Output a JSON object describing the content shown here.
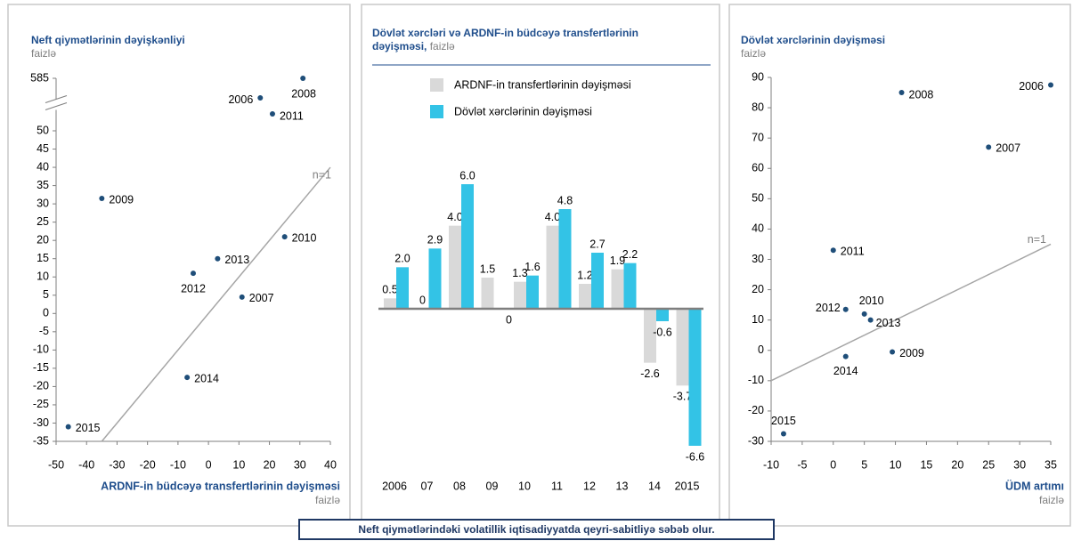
{
  "chart_data": [
    {
      "type": "scatter",
      "title": "Neft qiymətlərinin dəyişkənliyi",
      "subtitle": "faizlə",
      "xlabel": "ARDNF-in büdcəyə transfertlərinin dəyişməsi",
      "xunit": "faizlə",
      "labels": [
        "2006",
        "2007",
        "2008",
        "2009",
        "2010",
        "2011",
        "2012",
        "2013",
        "2014",
        "2015"
      ],
      "x": [
        17,
        11,
        31,
        -35,
        25,
        21,
        -5,
        3,
        -7,
        -46
      ],
      "values": [
        386,
        4.5,
        585,
        31.5,
        21,
        222,
        11,
        15,
        -17.5,
        -31
      ],
      "color": "#1f4e79",
      "xlim": [
        -50,
        40
      ],
      "xticks": [
        -50,
        -40,
        -30,
        -20,
        -10,
        0,
        10,
        20,
        30,
        40
      ],
      "ylim": [
        -35,
        585
      ],
      "yticks": [
        -35,
        -30,
        -25,
        -20,
        -15,
        -10,
        -5,
        0,
        5,
        10,
        15,
        20,
        25,
        30,
        35,
        40,
        45,
        50,
        585
      ],
      "axis_break": true,
      "grid": false,
      "line": {
        "label": "n=1",
        "x": [
          -35,
          40
        ],
        "y": [
          -35,
          40
        ],
        "color": "#a6a6a6"
      }
    },
    {
      "type": "bar",
      "title": "Dövlət xərcləri və ARDNF-in  büdcəyə transfertlərinin dəyişməsi,",
      "subtitle": "faizlə",
      "categories": [
        "2006",
        "07",
        "08",
        "09",
        "10",
        "11",
        "12",
        "13",
        "14",
        "2015"
      ],
      "series": [
        {
          "name": "ARDNF-in transfertlərinin dəyişməsi",
          "color": "#d9d9d9",
          "values": [
            0.5,
            0,
            4.0,
            1.5,
            1.3,
            4.0,
            1.2,
            1.9,
            -2.6,
            -3.7
          ],
          "value_labels": [
            "0.5",
            "0",
            "4.0",
            "1.5",
            "1.3",
            "4.0",
            "1.2",
            "1.9",
            "-2.6",
            "-3.7"
          ]
        },
        {
          "name": "Dövlət xərclərinin dəyişməsi",
          "color": "#33c3e6",
          "values": [
            2.0,
            2.9,
            6.0,
            0,
            1.6,
            4.8,
            2.7,
            2.2,
            -0.6,
            -6.6
          ],
          "value_labels": [
            "2.0",
            "2.9",
            "6.0",
            "0",
            "1.6",
            "4.8",
            "2.7",
            "2.2",
            "-0.6",
            "-6.6"
          ]
        }
      ]
    },
    {
      "type": "scatter",
      "title": "Dövlət xərclərinin  dəyişməsi",
      "subtitle": "faizlə",
      "xlabel": "ÜDM artımı",
      "xunit": "faizlə",
      "labels": [
        "2006",
        "2007",
        "2008",
        "2009",
        "2010",
        "2011",
        "2012",
        "2013",
        "2014",
        "2015"
      ],
      "x": [
        35,
        25,
        11,
        9.5,
        5,
        0,
        2,
        6,
        2,
        -8
      ],
      "values": [
        87.5,
        67,
        85,
        -0.5,
        12,
        33,
        13.5,
        10,
        -2,
        -27.5
      ],
      "color": "#1f4e79",
      "xlim": [
        -10,
        35
      ],
      "xticks": [
        -10,
        -5,
        0,
        5,
        10,
        15,
        20,
        25,
        30,
        35
      ],
      "ylim": [
        -30,
        90
      ],
      "yticks": [
        -30,
        -20,
        -10,
        0,
        10,
        20,
        30,
        40,
        50,
        60,
        70,
        80,
        90
      ],
      "axis_break": false,
      "grid": false,
      "line": {
        "label": "n=1",
        "x": [
          -10,
          35
        ],
        "y": [
          -10,
          35
        ],
        "color": "#a6a6a6"
      }
    }
  ],
  "caption": "Neft qiymətlərindəki volatillik iqtisadiyyatda qeyri-sabitliyə səbəb olur."
}
